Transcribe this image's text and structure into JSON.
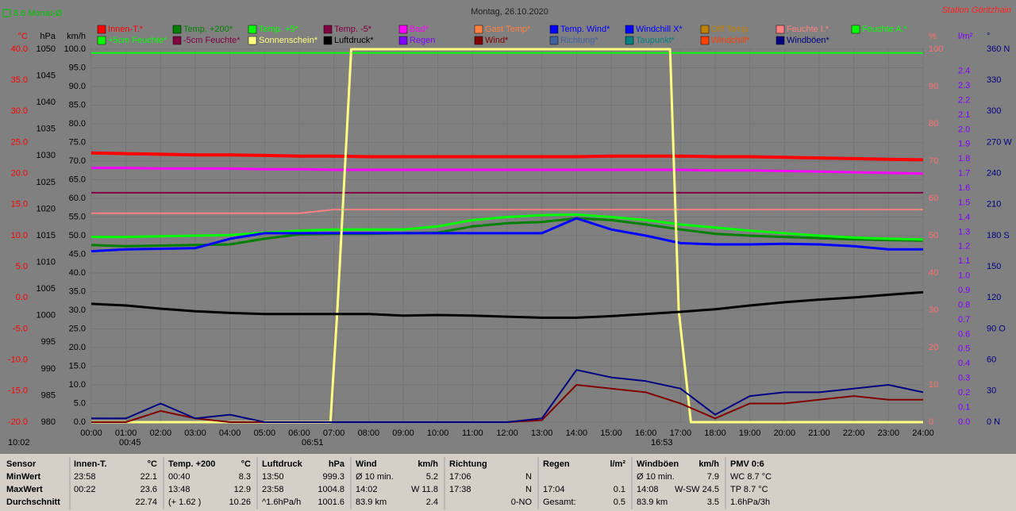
{
  "chart_data": {
    "type": "line",
    "title": "Montag, 26.10.2020",
    "subtitle": "Station Göritzhain",
    "month_avg": "8.6 Monat-Ø",
    "annotations": [
      "10:02",
      "00:45",
      "06:51",
      "16:53"
    ],
    "xlim": [
      0,
      24
    ],
    "x": [
      0,
      1,
      2,
      3,
      4,
      5,
      6,
      7,
      8,
      9,
      10,
      11,
      12,
      13,
      14,
      15,
      16,
      17,
      18,
      19,
      20,
      21,
      22,
      23,
      24
    ],
    "xticks": [
      {
        "value": 0,
        "label": "00:00"
      },
      {
        "value": 1,
        "label": "01:00"
      },
      {
        "value": 2,
        "label": "02:00"
      },
      {
        "value": 3,
        "label": "03:00"
      },
      {
        "value": 4,
        "label": "04:00"
      },
      {
        "value": 5,
        "label": "05:00"
      },
      {
        "value": 6,
        "label": "06:00"
      },
      {
        "value": 7,
        "label": "07:00"
      },
      {
        "value": 8,
        "label": "08:00"
      },
      {
        "value": 9,
        "label": "09:00"
      },
      {
        "value": 10,
        "label": "10:00"
      },
      {
        "value": 11,
        "label": "11:00"
      },
      {
        "value": 12,
        "label": "12:00"
      },
      {
        "value": 13,
        "label": "13:00"
      },
      {
        "value": 14,
        "label": "14:00"
      },
      {
        "value": 15,
        "label": "15:00"
      },
      {
        "value": 16,
        "label": "16:00"
      },
      {
        "value": 17,
        "label": "17:00"
      },
      {
        "value": 18,
        "label": "18:00"
      },
      {
        "value": 19,
        "label": "19:00"
      },
      {
        "value": 20,
        "label": "20:00"
      },
      {
        "value": 21,
        "label": "21:00"
      },
      {
        "value": 22,
        "label": "22:00"
      },
      {
        "value": 23,
        "label": "23:00"
      },
      {
        "value": 24,
        "label": "24:00"
      }
    ],
    "grid": true,
    "axes": {
      "c": {
        "label": "°C",
        "color": "#ff0000",
        "lim": [
          -20,
          40
        ],
        "ticks": [
          {
            "value": 40,
            "label": "40.0"
          },
          {
            "value": 35,
            "label": "35.0"
          },
          {
            "value": 30,
            "label": "30.0"
          },
          {
            "value": 25,
            "label": "25.0"
          },
          {
            "value": 20,
            "label": "20.0"
          },
          {
            "value": 15,
            "label": "15.0"
          },
          {
            "value": 10,
            "label": "10.0"
          },
          {
            "value": 5,
            "label": "5.0"
          },
          {
            "value": 0,
            "label": "0.0"
          },
          {
            "value": -5,
            "label": "-5.0"
          },
          {
            "value": -10,
            "label": "-10.0"
          },
          {
            "value": -15,
            "label": "-15.0"
          },
          {
            "value": -20,
            "label": "-20.0"
          }
        ]
      },
      "hpa": {
        "label": "hPa",
        "color": "#000000",
        "lim": [
          980,
          1050
        ],
        "ticks": [
          1050,
          1045,
          1040,
          1035,
          1030,
          1025,
          1020,
          1015,
          1010,
          1005,
          1000,
          995,
          990,
          985,
          980
        ]
      },
      "kmh": {
        "label": "km/h",
        "color": "#000000",
        "lim": [
          0,
          100
        ],
        "ticks": [
          {
            "value": 100,
            "label": "100.0"
          },
          {
            "value": 95,
            "label": "95.0"
          },
          {
            "value": 90,
            "label": "90.0"
          },
          {
            "value": 85,
            "label": "85.0"
          },
          {
            "value": 80,
            "label": "80.0"
          },
          {
            "value": 75,
            "label": "75.0"
          },
          {
            "value": 70,
            "label": "70.0"
          },
          {
            "value": 65,
            "label": "65.0"
          },
          {
            "value": 60,
            "label": "60.0"
          },
          {
            "value": 55,
            "label": "55.0"
          },
          {
            "value": 50,
            "label": "50.0"
          },
          {
            "value": 45,
            "label": "45.0"
          },
          {
            "value": 40,
            "label": "40.0"
          },
          {
            "value": 35,
            "label": "35.0"
          },
          {
            "value": 30,
            "label": "30.0"
          },
          {
            "value": 25,
            "label": "25.0"
          },
          {
            "value": 20,
            "label": "20.0"
          },
          {
            "value": 15,
            "label": "15.0"
          },
          {
            "value": 10,
            "label": "10.0"
          },
          {
            "value": 5,
            "label": "5.0"
          },
          {
            "value": 0,
            "label": "0.0"
          }
        ]
      },
      "pct": {
        "label": "%",
        "color": "#ff7070",
        "lim": [
          0,
          100
        ],
        "ticks": [
          100,
          90,
          80,
          70,
          60,
          50,
          40,
          30,
          20,
          10,
          0
        ]
      },
      "rain": {
        "label": "l/m²",
        "color": "#8000ff",
        "lim": [
          0,
          2.55
        ],
        "ticks": [
          2.4,
          2.3,
          2.2,
          2.1,
          {
            "value": 2,
            "label": "2.0"
          },
          1.9,
          1.8,
          1.7,
          1.6,
          1.5,
          1.4,
          1.3,
          1.2,
          1.1,
          {
            "value": 1,
            "label": "1.0"
          },
          0.9,
          0.8,
          0.7,
          0.6,
          0.5,
          0.4,
          0.3,
          0.2,
          0.1,
          {
            "value": 0,
            "label": "0.0"
          }
        ]
      },
      "deg": {
        "label": "°",
        "color": "#000080",
        "lim": [
          0,
          360
        ],
        "ticks": [
          {
            "value": 360,
            "label": "360 N"
          },
          330,
          300,
          {
            "value": 270,
            "label": "270 W"
          },
          240,
          210,
          {
            "value": 180,
            "label": "180 S"
          },
          150,
          120,
          {
            "value": 90,
            "label": "90 O"
          },
          60,
          30,
          {
            "value": 0,
            "label": "0 N"
          }
        ]
      }
    },
    "series": [
      {
        "name": "Innen-T.*",
        "color": "#ff0000",
        "axis": "c",
        "width": 4,
        "values": [
          23.3,
          23.2,
          23.1,
          23.0,
          23.0,
          22.9,
          22.8,
          22.8,
          22.7,
          22.7,
          22.7,
          22.7,
          22.7,
          22.7,
          22.7,
          22.8,
          22.8,
          22.8,
          22.7,
          22.7,
          22.6,
          22.5,
          22.4,
          22.3,
          22.2
        ]
      },
      {
        "name": "Temp. +200*",
        "color": "#008000",
        "axis": "c",
        "width": 3,
        "values": [
          8.5,
          8.3,
          8.4,
          8.5,
          8.6,
          9.5,
          10.2,
          10.3,
          10.3,
          10.4,
          10.5,
          11.5,
          12.0,
          12.2,
          12.8,
          12.5,
          11.8,
          11.0,
          10.3,
          10.0,
          9.8,
          9.6,
          9.4,
          9.3,
          9.2
        ]
      },
      {
        "name": "Temp. +5*",
        "color": "#00ff00",
        "axis": "c",
        "width": 3,
        "values": [
          9.8,
          9.8,
          9.9,
          10.0,
          10.1,
          10.5,
          10.8,
          11.0,
          11.0,
          11.0,
          11.5,
          12.5,
          13.0,
          13.3,
          13.4,
          13.0,
          12.5,
          11.8,
          11.3,
          10.8,
          10.4,
          10.0,
          9.7,
          9.5,
          9.4
        ]
      },
      {
        "name": "Temp. -5*",
        "color": "#800040",
        "axis": "c",
        "width": 2,
        "values": [
          16.9,
          16.9,
          16.9,
          16.9,
          16.9,
          16.9,
          16.9,
          16.9,
          16.9,
          16.9,
          16.9,
          16.9,
          16.9,
          16.9,
          16.9,
          16.9,
          16.9,
          16.9,
          16.9,
          16.9,
          16.9,
          16.9,
          16.9,
          16.9,
          16.9
        ]
      },
      {
        "name": "Bad*",
        "color": "#ff00ff",
        "axis": "c",
        "width": 3,
        "values": [
          20.9,
          20.9,
          20.8,
          20.8,
          20.8,
          20.7,
          20.7,
          20.6,
          20.6,
          20.6,
          20.6,
          20.6,
          20.6,
          20.6,
          20.6,
          20.6,
          20.6,
          20.6,
          20.5,
          20.5,
          20.4,
          20.3,
          20.2,
          20.1,
          20.0
        ]
      },
      {
        "name": "Gast Temp*",
        "color": "#ff8040"
      },
      {
        "name": "Temp. Wind*",
        "color": "#0000ff"
      },
      {
        "name": "Windchill X*",
        "color": "#0000ff",
        "axis": "c",
        "width": 3,
        "values": [
          7.5,
          7.8,
          7.9,
          8.0,
          9.5,
          10.4,
          10.4,
          10.4,
          10.4,
          10.4,
          10.4,
          10.4,
          10.4,
          10.4,
          12.8,
          11.0,
          10.0,
          8.8,
          8.6,
          8.6,
          8.7,
          8.6,
          8.3,
          7.8,
          7.8
        ]
      },
      {
        "name": "Diff Temp.",
        "color": "#c08000"
      },
      {
        "name": "Feuchte I.*",
        "color": "#ff8080",
        "axis": "pct",
        "width": 2,
        "values": [
          56,
          56,
          56,
          56,
          56,
          56,
          56,
          57,
          57,
          57,
          57,
          57,
          57,
          57,
          57,
          57,
          57,
          57,
          57,
          57,
          57,
          57,
          57,
          57,
          57
        ]
      },
      {
        "name": "Feuchte A.*",
        "color": "#00ff00",
        "axis": "pct",
        "width": 2,
        "values": [
          99,
          99,
          99,
          99,
          99,
          99,
          99,
          99,
          99,
          99,
          99,
          99,
          99,
          99,
          99,
          99,
          99,
          99,
          99,
          99,
          99,
          99,
          99,
          99,
          99
        ]
      },
      {
        "name": "+5cm Feuchte*",
        "color": "#00ff00"
      },
      {
        "name": "-5cm Feuchte*",
        "color": "#800040"
      },
      {
        "name": "Sonnenschein*",
        "color": "#ffff80",
        "axis": "pct",
        "width": 3,
        "x": [
          0,
          6.9,
          7.1,
          7.5,
          16.7,
          16.95,
          17.3,
          24
        ],
        "values": [
          0,
          0,
          30,
          100,
          100,
          30,
          0,
          0
        ]
      },
      {
        "name": "Luftdruck*",
        "color": "#000000",
        "axis": "hpa",
        "width": 3,
        "values": [
          1002.2,
          1001.9,
          1001.3,
          1000.8,
          1000.5,
          1000.3,
          1000.3,
          1000.3,
          1000.3,
          1000.0,
          1000.1,
          1000.0,
          999.8,
          999.6,
          999.6,
          999.9,
          1000.3,
          1000.7,
          1001.2,
          1001.9,
          1002.5,
          1003.0,
          1003.4,
          1003.9,
          1004.4
        ]
      },
      {
        "name": "Regen",
        "color": "#8000ff"
      },
      {
        "name": "Wind*",
        "color": "#800000",
        "axis": "kmh",
        "width": 2,
        "values": [
          0,
          0,
          3,
          1,
          0,
          0,
          0,
          0,
          0,
          0,
          0,
          0,
          0,
          0.5,
          10,
          9,
          8,
          5,
          1,
          5,
          5,
          6,
          7,
          6,
          6
        ]
      },
      {
        "name": "Richtung*",
        "color": "#4060a0"
      },
      {
        "name": "Taupunkt*",
        "color": "#008080"
      },
      {
        "name": "Windchill*",
        "color": "#ff4000"
      },
      {
        "name": "Windböen*",
        "color": "#000080",
        "axis": "kmh",
        "width": 2,
        "values": [
          1,
          1,
          5,
          1,
          2,
          0,
          0,
          0,
          0,
          0,
          0,
          0,
          0,
          1,
          14,
          12,
          11,
          9,
          2,
          7,
          8,
          8,
          9,
          10,
          8
        ]
      }
    ]
  },
  "table": {
    "header": [
      {
        "left": "Sensor"
      },
      {
        "left": "Innen-T.",
        "right": "°C"
      },
      {
        "left": "Temp. +200",
        "right": "°C"
      },
      {
        "left": "Luftdruck",
        "right": "hPa"
      },
      {
        "left": "Wind",
        "right": "km/h"
      },
      {
        "left": "Richtung"
      },
      {
        "left": "Regen",
        "right": "l/m²"
      },
      {
        "left": "Windböen",
        "right": "km/h"
      },
      {
        "left": "PMV 0:6"
      }
    ],
    "rows": [
      [
        {
          "left": "MinWert"
        },
        {
          "left": "23:58",
          "right": "22.1"
        },
        {
          "left": "00:40",
          "right": "8.3"
        },
        {
          "left": "13:50",
          "right": "999.3"
        },
        {
          "left": "Ø 10 min.",
          "right": "5.2"
        },
        {
          "left": "17:06",
          "right": "N"
        },
        {},
        {
          "left": "Ø 10 min.",
          "right": "7.9"
        },
        {
          "left": "WC 8.7 °C"
        }
      ],
      [
        {
          "left": "MaxWert"
        },
        {
          "left": "00:22",
          "right": "23.6"
        },
        {
          "left": "13:48",
          "right": "12.9"
        },
        {
          "left": "23:58",
          "right": "1004.8"
        },
        {
          "left": "14:02",
          "right": "W 11.8"
        },
        {
          "left": "17:38",
          "right": "N"
        },
        {
          "left": "17:04",
          "right": "0.1"
        },
        {
          "left": "14:08",
          "right": "W-SW 24.5"
        },
        {
          "left": "TP 8.7 °C"
        }
      ],
      [
        {
          "left": "Durchschnitt"
        },
        {
          "right": "22.74"
        },
        {
          "left": "(+ 1.62 )",
          "right": "10.26"
        },
        {
          "left": "^1.6hPa/h",
          "right": "1001.6"
        },
        {
          "left": "83.9 km",
          "right": "2.4"
        },
        {
          "right": "0-NO"
        },
        {
          "left": "Gesamt:",
          "right": "0.5"
        },
        {
          "left": "83.9 km",
          "right": "3.5"
        },
        {
          "left": "1.6hPa/3h"
        }
      ]
    ]
  }
}
